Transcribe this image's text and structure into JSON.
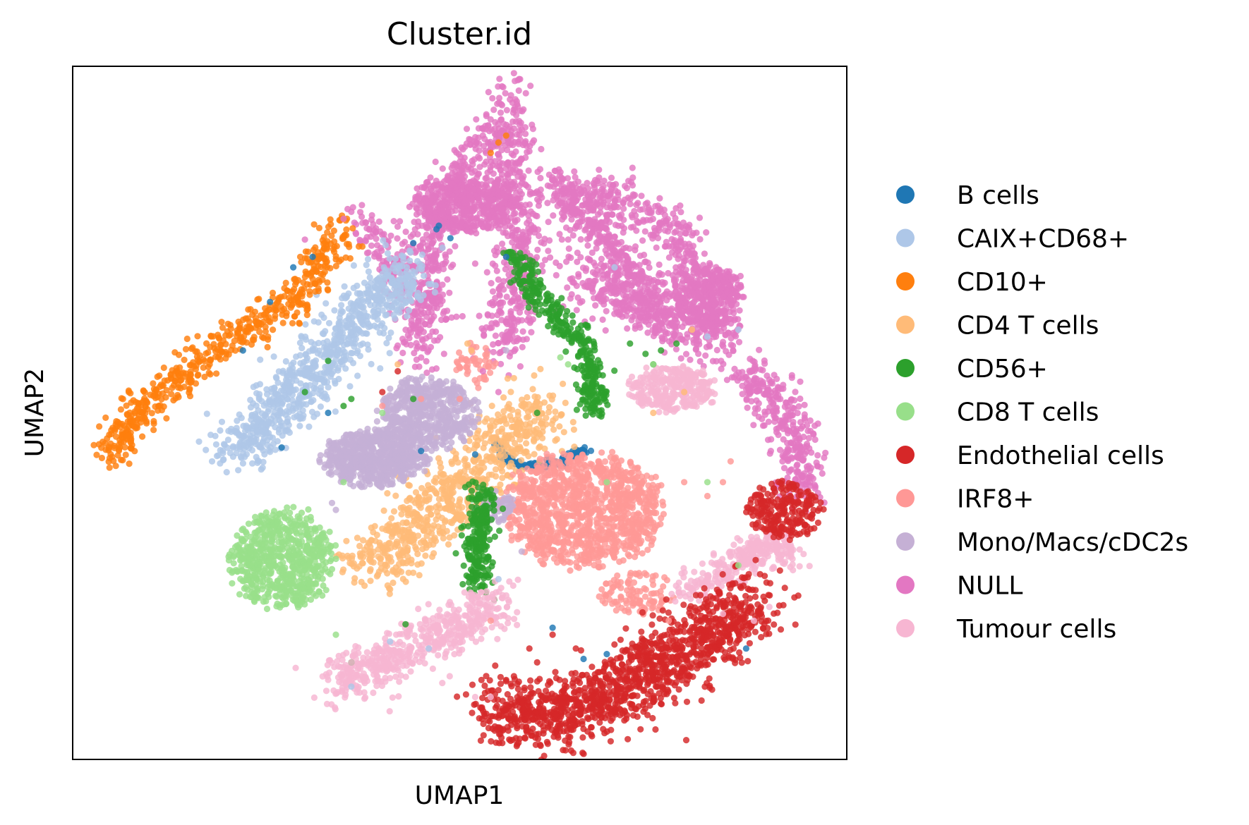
{
  "chart_data": {
    "type": "scatter",
    "title": "Cluster.id",
    "xlabel": "UMAP1",
    "ylabel": "UMAP2",
    "xlim": [
      0,
      100
    ],
    "ylim": [
      0,
      100
    ],
    "grid": false,
    "xticks": false,
    "yticks": false,
    "legend_position": "right-outside",
    "series": [
      {
        "name": "B cells",
        "color": "#1f77b4",
        "regions": [
          {
            "kind": "polyline",
            "points": [
              [
                54.5,
                46
              ],
              [
                56,
                43.5
              ],
              [
                58,
                42.3
              ],
              [
                61,
                42.5
              ],
              [
                64,
                43.5
              ],
              [
                66.5,
                45
              ]
            ],
            "spread": 0.35,
            "n": 140
          }
        ],
        "scatter": [
          [
            47,
            76.5
          ],
          [
            47.3,
            77
          ],
          [
            44,
            74.5
          ],
          [
            48.8,
            75.2
          ],
          [
            56,
            72.5
          ],
          [
            31,
            72.5
          ],
          [
            28.5,
            71
          ],
          [
            25.5,
            66
          ],
          [
            22,
            59
          ],
          [
            33,
            50
          ],
          [
            27,
            45
          ],
          [
            45,
            44.5
          ],
          [
            52,
            44
          ],
          [
            66,
            14.5
          ],
          [
            69,
            15.2
          ],
          [
            87,
            16
          ],
          [
            62,
            19
          ]
        ]
      },
      {
        "name": "CAIX+CD68+",
        "color": "#aec7e8",
        "regions": [
          {
            "kind": "polyline",
            "points": [
              [
                21,
                44
              ],
              [
                27,
                51
              ],
              [
                33,
                58
              ],
              [
                38,
                65
              ],
              [
                44,
                71
              ]
            ],
            "spread": 2.0,
            "n": 850
          }
        ],
        "scatter": [
          [
            36,
            10.5
          ],
          [
            46,
            16
          ],
          [
            55,
            26
          ],
          [
            70,
            71
          ],
          [
            82,
            61
          ],
          [
            86,
            62
          ],
          [
            41,
            17
          ],
          [
            18,
            43
          ]
        ]
      },
      {
        "name": "CD10+",
        "color": "#ff7f0e",
        "regions": [
          {
            "kind": "polyline",
            "points": [
              [
                5,
                44
              ],
              [
                7,
                48
              ],
              [
                10,
                52
              ],
              [
                14,
                55
              ],
              [
                18,
                59
              ],
              [
                22,
                62
              ],
              [
                26,
                64
              ],
              [
                29,
                67
              ],
              [
                32,
                71
              ],
              [
                35,
                77
              ]
            ],
            "spread": 1.3,
            "n": 560
          }
        ],
        "scatter": [
          [
            55,
            89
          ],
          [
            56,
            90
          ],
          [
            54,
            87.5
          ]
        ]
      },
      {
        "name": "CD4 T cells",
        "color": "#ffbb78",
        "regions": [
          {
            "kind": "polyline",
            "points": [
              [
                38,
                28
              ],
              [
                43,
                31.5
              ],
              [
                47,
                36
              ],
              [
                51,
                40
              ],
              [
                55,
                44
              ],
              [
                58,
                48
              ],
              [
                61,
                51
              ]
            ],
            "spread": 2.3,
            "n": 750
          }
        ],
        "scatter": [
          [
            51,
            60
          ],
          [
            51.5,
            59
          ],
          [
            57,
            55
          ],
          [
            80,
            62
          ],
          [
            79,
            53
          ],
          [
            75,
            50
          ],
          [
            42,
            57
          ]
        ]
      },
      {
        "name": "CD56+",
        "color": "#2ca02c",
        "regions": [
          {
            "kind": "polyline",
            "points": [
              [
                57,
                73
              ],
              [
                60,
                67
              ],
              [
                63,
                63
              ],
              [
                66,
                60
              ],
              [
                67,
                55
              ],
              [
                67.5,
                50
              ]
            ],
            "spread": 0.9,
            "n": 360
          },
          {
            "kind": "polyline",
            "points": [
              [
                53,
                39
              ],
              [
                52.5,
                34
              ],
              [
                52,
                29
              ],
              [
                53,
                25
              ]
            ],
            "spread": 0.9,
            "n": 240
          }
        ],
        "scatter": [
          [
            30,
            53
          ],
          [
            33,
            57.5
          ],
          [
            74,
            58.5
          ],
          [
            76,
            59
          ],
          [
            78,
            60
          ],
          [
            72,
            60
          ],
          [
            75,
            57
          ],
          [
            35,
            51
          ],
          [
            36,
            52
          ],
          [
            44,
            52
          ],
          [
            36,
            14
          ],
          [
            43,
            19.5
          ],
          [
            60,
            50
          ]
        ]
      },
      {
        "name": "CD8 T cells",
        "color": "#98df8a",
        "regions": [
          {
            "kind": "ellipse",
            "cx": 27,
            "cy": 29,
            "rx": 6.5,
            "ry": 7,
            "n": 650
          }
        ],
        "scatter": [
          [
            63,
            58
          ],
          [
            64,
            57
          ],
          [
            69,
            40
          ],
          [
            82,
            40
          ],
          [
            75,
            57
          ],
          [
            86,
            28
          ],
          [
            40,
            50
          ],
          [
            35,
            40
          ],
          [
            34,
            18
          ]
        ]
      },
      {
        "name": "Endothelial cells",
        "color": "#d62728",
        "regions": [
          {
            "kind": "polyline",
            "points": [
              [
                54,
                8
              ],
              [
                60,
                6
              ],
              [
                66,
                7.5
              ],
              [
                72,
                11
              ],
              [
                78,
                15
              ],
              [
                83,
                18.5
              ],
              [
                86,
                21
              ],
              [
                88,
                23
              ]
            ],
            "spread": 2.6,
            "n": 1300
          },
          {
            "kind": "ellipse",
            "cx": 92,
            "cy": 36,
            "rx": 4.5,
            "ry": 4,
            "n": 220
          }
        ],
        "scatter": [
          [
            55,
            10
          ],
          [
            57,
            12
          ],
          [
            59,
            16
          ],
          [
            60,
            14
          ],
          [
            40,
            53
          ],
          [
            42,
            56
          ],
          [
            62,
            18
          ],
          [
            65,
            16
          ]
        ]
      },
      {
        "name": "IRF8+",
        "color": "#ff9896",
        "regions": [
          {
            "kind": "ellipse",
            "cx": 66,
            "cy": 36,
            "rx": 10,
            "ry": 8,
            "n": 1150
          },
          {
            "kind": "ellipse",
            "cx": 52,
            "cy": 57,
            "rx": 2.5,
            "ry": 3,
            "n": 50
          },
          {
            "kind": "ellipse",
            "cx": 73,
            "cy": 24,
            "rx": 5,
            "ry": 3,
            "n": 110
          }
        ],
        "scatter": [
          [
            40,
            51
          ],
          [
            45,
            52
          ],
          [
            50,
            52
          ],
          [
            82,
            38
          ],
          [
            84,
            40
          ],
          [
            79,
            40
          ],
          [
            85,
            43
          ],
          [
            77,
            20
          ],
          [
            75,
            22
          ],
          [
            54,
            20
          ]
        ]
      },
      {
        "name": "Mono/Macs/cDC2s",
        "color": "#c5b0d5",
        "regions": [
          {
            "kind": "ellipse",
            "cx": 39,
            "cy": 43.5,
            "rx": 6.5,
            "ry": 4,
            "n": 650
          },
          {
            "kind": "ellipse",
            "cx": 46,
            "cy": 50,
            "rx": 6,
            "ry": 5,
            "n": 550
          },
          {
            "kind": "ellipse",
            "cx": 54.5,
            "cy": 36.5,
            "rx": 2.5,
            "ry": 2.2,
            "n": 60
          }
        ],
        "scatter": [
          [
            34,
            36
          ],
          [
            33.5,
            37
          ],
          [
            56,
            59
          ],
          [
            58,
            30
          ]
        ]
      },
      {
        "name": "NULL",
        "color": "#e377c2",
        "regions": [
          {
            "kind": "ellipse",
            "cx": 51,
            "cy": 80,
            "rx": 7,
            "ry": 3.8,
            "n": 520
          },
          {
            "kind": "polyline",
            "points": [
              [
                56,
                96
              ],
              [
                56.5,
                90
              ],
              [
                57,
                84
              ],
              [
                57.5,
                76
              ],
              [
                57,
                68
              ],
              [
                56,
                58
              ]
            ],
            "spread": 1.8,
            "n": 500
          },
          {
            "kind": "polyline",
            "points": [
              [
                55,
                91
              ],
              [
                50,
                84
              ],
              [
                46,
                76
              ],
              [
                45.5,
                68
              ],
              [
                45,
                58
              ]
            ],
            "spread": 1.6,
            "n": 420
          },
          {
            "kind": "polyline",
            "points": [
              [
                62,
                82
              ],
              [
                68,
                77
              ],
              [
                72,
                70
              ],
              [
                76,
                63
              ]
            ],
            "spread": 1.7,
            "n": 420
          },
          {
            "kind": "polyline",
            "points": [
              [
                64,
                69
              ],
              [
                72,
                67
              ],
              [
                79,
                63
              ],
              [
                85,
                60
              ]
            ],
            "spread": 2.0,
            "n": 380
          },
          {
            "kind": "polyline",
            "points": [
              [
                62,
                83
              ],
              [
                70,
                81
              ],
              [
                77,
                77
              ],
              [
                81,
                69
              ],
              [
                82,
                63
              ]
            ],
            "spread": 1.5,
            "n": 360
          },
          {
            "kind": "ellipse",
            "cx": 82,
            "cy": 67,
            "rx": 4.5,
            "ry": 4.5,
            "n": 320
          },
          {
            "kind": "polyline",
            "points": [
              [
                86,
                56
              ],
              [
                90,
                53
              ],
              [
                93,
                48
              ],
              [
                94,
                42
              ],
              [
                94,
                38
              ]
            ],
            "spread": 1.6,
            "n": 330
          },
          {
            "kind": "polyline",
            "points": [
              [
                37,
                78
              ],
              [
                40,
                74
              ],
              [
                43,
                68
              ],
              [
                48,
                64
              ]
            ],
            "spread": 1.5,
            "n": 170
          }
        ],
        "scatter": [
          [
            57,
            99
          ],
          [
            57.5,
            98
          ],
          [
            35,
            78
          ],
          [
            36,
            79
          ],
          [
            30,
            75
          ],
          [
            53,
            56
          ],
          [
            55,
            53
          ]
        ]
      },
      {
        "name": "Tumour cells",
        "color": "#f7b6d2",
        "regions": [
          {
            "kind": "polyline",
            "points": [
              [
                34,
                11
              ],
              [
                40,
                14
              ],
              [
                46,
                17
              ],
              [
                51,
                20
              ],
              [
                55,
                23
              ]
            ],
            "spread": 1.8,
            "n": 540
          },
          {
            "kind": "ellipse",
            "cx": 77.5,
            "cy": 53.5,
            "rx": 5.5,
            "ry": 3.2,
            "n": 300
          },
          {
            "kind": "polyline",
            "points": [
              [
                79,
                24
              ],
              [
                84,
                27
              ],
              [
                88,
                30
              ],
              [
                91,
                31
              ],
              [
                93,
                29
              ]
            ],
            "spread": 1.2,
            "n": 300
          }
        ],
        "scatter": [
          [
            36,
            14
          ],
          [
            88,
            20
          ],
          [
            90,
            22
          ],
          [
            84,
            21
          ],
          [
            52,
            9
          ],
          [
            54,
            9
          ]
        ]
      }
    ]
  }
}
